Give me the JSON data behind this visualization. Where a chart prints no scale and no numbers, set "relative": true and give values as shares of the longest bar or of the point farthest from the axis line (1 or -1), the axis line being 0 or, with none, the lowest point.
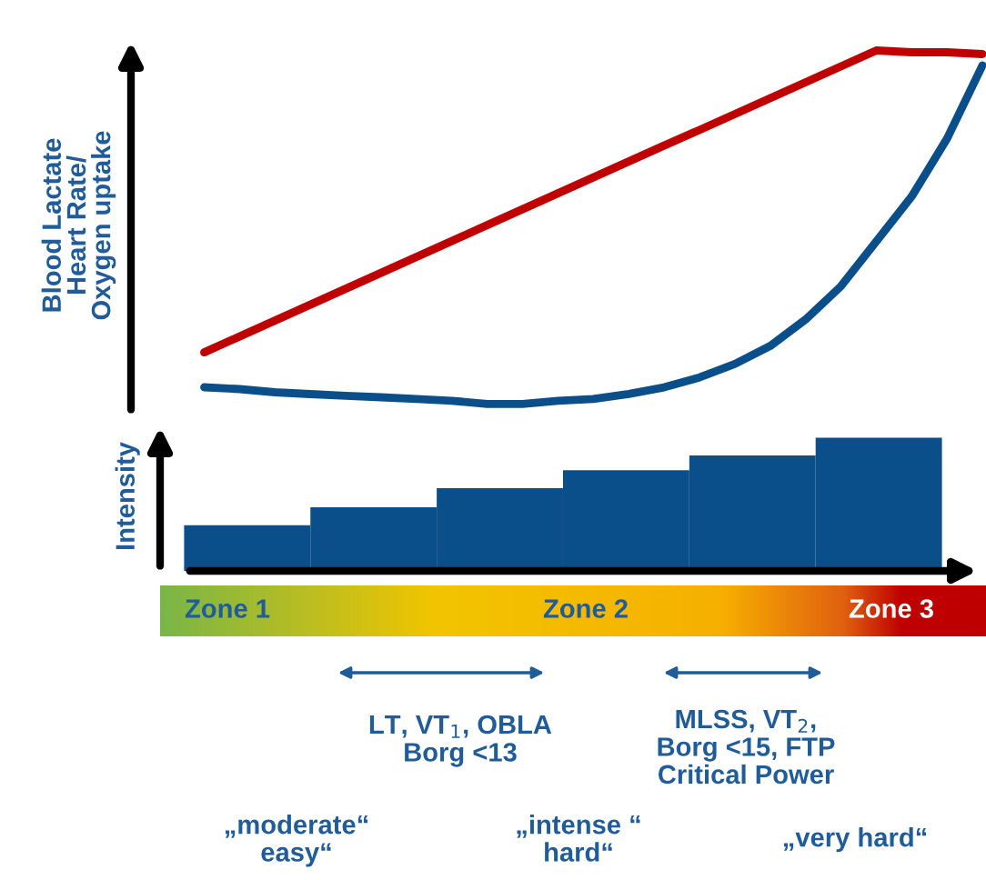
{
  "chart_data": [
    {
      "type": "line",
      "ylabel": "Blood Lactate\nHeart Rate/\nOxygen uptake",
      "relative": true,
      "categories": [
        null,
        null,
        null,
        null,
        null,
        null,
        null,
        null,
        null,
        null,
        null,
        null,
        null,
        null,
        null,
        null,
        null,
        null,
        null,
        null,
        null,
        null,
        null
      ],
      "series": [
        {
          "color": "#c00000",
          "values": [
            0.146,
            0.191,
            0.236,
            0.281,
            0.326,
            0.371,
            0.416,
            0.461,
            0.506,
            0.551,
            0.596,
            0.641,
            0.686,
            0.731,
            0.775,
            0.82,
            0.865,
            0.91,
            0.955,
            1.0,
            0.995,
            0.995,
            0.99
          ]
        },
        {
          "color": "#0b4f8a",
          "values": [
            0.047,
            0.042,
            0.033,
            0.028,
            0.023,
            0.019,
            0.014,
            0.009,
            0,
            0,
            0.009,
            0.014,
            0.028,
            0.047,
            0.075,
            0.113,
            0.164,
            0.239,
            0.333,
            0.46,
            0.587,
            0.751,
            0.958
          ]
        }
      ]
    },
    {
      "type": "bar",
      "ylabel": "Intensity",
      "relative": true,
      "categories": [
        null,
        null,
        null,
        null,
        null,
        null
      ],
      "values": [
        0.344,
        0.478,
        0.622,
        0.756,
        0.867,
        1.0
      ],
      "color": "#0b4f8a",
      "annotations": [
        "Zone 1",
        "Zone 2",
        "Zone 3",
        "LT, VT$_{1}$, OBLA\nBorg <13",
        "MLSS, VT$_{2}$,\nBorg <15, FTP\nCritical Power",
        "„moderate“\neasy“",
        "„intense “\nhard“",
        "„very hard“"
      ]
    }
  ]
}
